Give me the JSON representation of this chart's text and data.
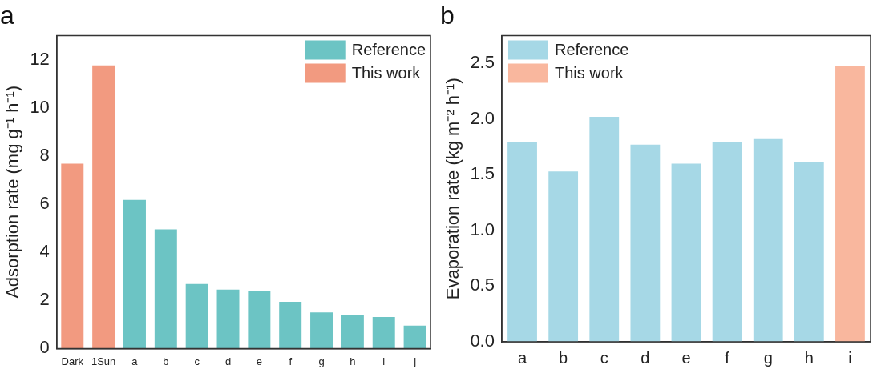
{
  "chart_data": [
    {
      "type": "bar",
      "title": "a",
      "ylabel": "Adsorption rate (mg g⁻¹ h⁻¹)",
      "categories": [
        "Dark",
        "1Sun",
        "a",
        "b",
        "c",
        "d",
        "e",
        "f",
        "g",
        "h",
        "i",
        "j"
      ],
      "series": [
        {
          "name": "Reference",
          "color": "#6cc4c4",
          "values": [
            null,
            null,
            6.17,
            4.95,
            2.68,
            2.45,
            2.37,
            1.94,
            1.5,
            1.38,
            1.31,
            0.95
          ]
        },
        {
          "name": "This work",
          "color": "#f29a80",
          "values": [
            7.68,
            11.76,
            null,
            null,
            null,
            null,
            null,
            null,
            null,
            null,
            null,
            null
          ]
        }
      ],
      "ylim": [
        0,
        13
      ],
      "yticks": [
        0,
        2,
        4,
        6,
        8,
        10,
        12
      ],
      "grid": false,
      "legend": "top right"
    },
    {
      "type": "bar",
      "title": "b",
      "ylabel": "Evaporation rate (kg m⁻² h⁻¹)",
      "categories": [
        "a",
        "b",
        "c",
        "d",
        "e",
        "f",
        "g",
        "h",
        "i"
      ],
      "series": [
        {
          "name": "Reference",
          "color": "#a6d8e6",
          "values": [
            1.79,
            1.53,
            2.02,
            1.77,
            1.6,
            1.79,
            1.82,
            1.61,
            null
          ]
        },
        {
          "name": "This work",
          "color": "#f9b79e",
          "values": [
            null,
            null,
            null,
            null,
            null,
            null,
            null,
            null,
            2.48
          ]
        }
      ],
      "ylim": [
        0,
        2.75
      ],
      "yticks": [
        {
          "value": 0,
          "label": "0.0"
        },
        0.5,
        {
          "value": 1,
          "label": "1.0"
        },
        1.5,
        {
          "value": 2,
          "label": "2.0"
        },
        2.5
      ],
      "grid": false,
      "legend": "top left"
    }
  ]
}
